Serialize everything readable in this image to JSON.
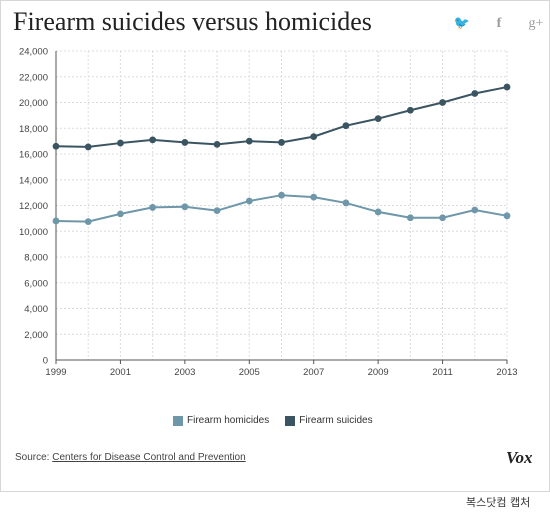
{
  "header": {
    "title": "Firearm suicides versus homicides",
    "share_twitter": "🐦",
    "share_facebook": "f",
    "share_google": "g+"
  },
  "icons": {
    "twitter": "twitter-icon",
    "facebook": "facebook-icon",
    "google_plus": "google-plus-icon"
  },
  "colors": {
    "homicides": "#6e97aa",
    "suicides": "#3b5462",
    "grid": "#dcdcdc",
    "axis": "#555555"
  },
  "chart_data": {
    "type": "line",
    "title": "Firearm suicides versus homicides",
    "x": [
      1999,
      2000,
      2001,
      2002,
      2003,
      2004,
      2005,
      2006,
      2007,
      2008,
      2009,
      2010,
      2011,
      2012,
      2013
    ],
    "x_tick_labels": [
      "1999",
      "2001",
      "2003",
      "2005",
      "2007",
      "2009",
      "2011",
      "2013"
    ],
    "y_tick_labels": [
      "0",
      "2,000",
      "4,000",
      "6,000",
      "8,000",
      "10,000",
      "12,000",
      "14,000",
      "16,000",
      "18,000",
      "20,000",
      "22,000",
      "24,000"
    ],
    "ylim": [
      0,
      24000
    ],
    "grid": true,
    "legend_position": "bottom",
    "series": [
      {
        "name": "Firearm homicides",
        "values": [
          10800,
          10750,
          11350,
          11850,
          11900,
          11600,
          12350,
          12800,
          12650,
          12200,
          11500,
          11050,
          11050,
          11650,
          11200
        ]
      },
      {
        "name": "Firearm suicides",
        "values": [
          16600,
          16550,
          16850,
          17100,
          16900,
          16750,
          17000,
          16900,
          17350,
          18200,
          18750,
          19400,
          20000,
          20700,
          21200
        ]
      }
    ]
  },
  "legend": {
    "homicides_label": "Firearm homicides",
    "suicides_label": "Firearm suicides"
  },
  "footer": {
    "source_prefix": "Source:",
    "source_link": "Centers for Disease Control and Prevention",
    "brand": "Vox"
  },
  "capture_note": "복스닷컴 캡처"
}
